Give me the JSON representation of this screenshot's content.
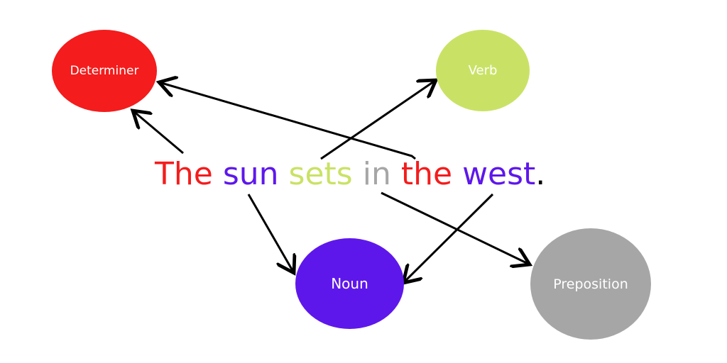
{
  "colors": {
    "determiner": "#f41c1c",
    "verb": "#c9e265",
    "noun": "#5e17eb",
    "preposition": "#a6a6a6",
    "arrow": "#000000",
    "period": "#000000"
  },
  "nodes": {
    "determiner": "Determiner",
    "verb": "Verb",
    "noun": "Noun",
    "preposition": "Preposition"
  },
  "sentence": [
    {
      "text": "The",
      "pos": "determiner"
    },
    {
      "text": " ",
      "pos": "space"
    },
    {
      "text": "sun",
      "pos": "noun"
    },
    {
      "text": " ",
      "pos": "space"
    },
    {
      "text": "sets",
      "pos": "verb"
    },
    {
      "text": " ",
      "pos": "space"
    },
    {
      "text": "in",
      "pos": "preposition"
    },
    {
      "text": " ",
      "pos": "space"
    },
    {
      "text": "the",
      "pos": "determiner"
    },
    {
      "text": " ",
      "pos": "space"
    },
    {
      "text": "west",
      "pos": "noun"
    },
    {
      "text": ".",
      "pos": "period"
    }
  ]
}
